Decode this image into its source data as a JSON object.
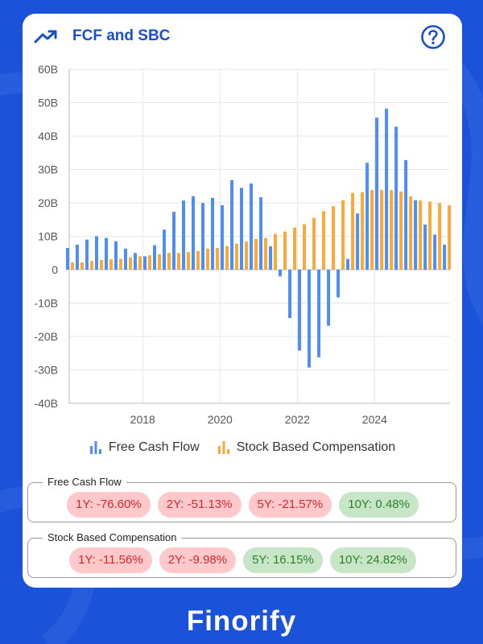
{
  "header": {
    "title": "FCF and SBC",
    "trend_icon": "trending-up-icon",
    "help_icon": "help-circle-icon"
  },
  "colors": {
    "background": "#1a53d9",
    "fcf": "#4f8df0",
    "sbc": "#f9a93b",
    "title": "#1a4fc8",
    "negative_bg": "#ffc9cc",
    "negative_text": "#d5262f",
    "positive_bg": "#c6e6c6",
    "positive_text": "#2e7d32"
  },
  "chart_data": {
    "type": "bar",
    "y_ticks": [
      "60B",
      "50B",
      "40B",
      "30B",
      "20B",
      "10B",
      "0",
      "-10B",
      "-20B",
      "-30B",
      "-40B"
    ],
    "ylim": [
      -40,
      60
    ],
    "y_unit": "B",
    "x_ticks": [
      {
        "label": "2018",
        "value": 2018
      },
      {
        "label": "2020",
        "value": 2020
      },
      {
        "label": "2022",
        "value": 2022
      },
      {
        "label": "2024",
        "value": 2024
      }
    ],
    "xlim": [
      2016.1,
      2025.95
    ],
    "series": [
      {
        "name": "Free Cash Flow",
        "x": [
          2016.13,
          2016.38,
          2016.63,
          2016.88,
          2017.13,
          2017.38,
          2017.63,
          2017.88,
          2018.13,
          2018.38,
          2018.63,
          2018.88,
          2019.13,
          2019.38,
          2019.63,
          2019.88,
          2020.13,
          2020.38,
          2020.63,
          2020.88,
          2021.13,
          2021.38,
          2021.63,
          2021.88,
          2022.13,
          2022.38,
          2022.63,
          2022.88,
          2023.13,
          2023.38,
          2023.63,
          2023.88,
          2024.13,
          2024.38,
          2024.63,
          2024.88,
          2025.13,
          2025.38,
          2025.63,
          2025.88
        ],
        "values": [
          6.5,
          7.5,
          9,
          10,
          9.5,
          8.5,
          6.3,
          5,
          4,
          7.3,
          12,
          17.3,
          20.7,
          22,
          20,
          21.5,
          19.3,
          26.8,
          24.5,
          25.8,
          21.7,
          7,
          -2,
          -14.5,
          -24.2,
          -29.3,
          -26.2,
          -16.8,
          -8.3,
          3.2,
          16.8,
          32,
          45.5,
          48.2,
          42.8,
          32.8,
          20.8,
          13.5,
          10.5,
          7.5
        ]
      },
      {
        "name": "Stock Based Compensation",
        "x": [
          2016.13,
          2016.38,
          2016.63,
          2016.88,
          2017.13,
          2017.38,
          2017.63,
          2017.88,
          2018.13,
          2018.38,
          2018.63,
          2018.88,
          2019.13,
          2019.38,
          2019.63,
          2019.88,
          2020.13,
          2020.38,
          2020.63,
          2020.88,
          2021.13,
          2021.38,
          2021.63,
          2021.88,
          2022.13,
          2022.38,
          2022.63,
          2022.88,
          2023.13,
          2023.38,
          2023.63,
          2023.88,
          2024.13,
          2024.38,
          2024.63,
          2024.88,
          2025.13,
          2025.38,
          2025.63,
          2025.88
        ],
        "values": [
          2.2,
          2.2,
          2.6,
          2.9,
          3.1,
          3.3,
          3.7,
          4,
          4.3,
          4.6,
          5,
          5,
          5.3,
          5.6,
          6.3,
          6.5,
          7.1,
          7.8,
          8.4,
          9.2,
          9.5,
          10.7,
          11.4,
          12.6,
          13.6,
          15.5,
          17.5,
          19,
          20.8,
          23,
          23.2,
          23.8,
          23.9,
          23.8,
          23.4,
          21.9,
          20.7,
          20.4,
          19.9,
          19.3
        ]
      }
    ],
    "legend": [
      "Free Cash Flow",
      "Stock Based Compensation"
    ]
  },
  "legend": {
    "fcf_label": "Free Cash Flow",
    "sbc_label": "Stock Based Compensation"
  },
  "metrics": {
    "fcf": {
      "title": "Free Cash Flow",
      "pills": [
        {
          "label": "1Y: -76.60%",
          "sign": "neg"
        },
        {
          "label": "2Y: -51.13%",
          "sign": "neg"
        },
        {
          "label": "5Y: -21.57%",
          "sign": "neg"
        },
        {
          "label": "10Y: 0.48%",
          "sign": "pos"
        }
      ]
    },
    "sbc": {
      "title": "Stock Based Compensation",
      "pills": [
        {
          "label": "1Y: -11.56%",
          "sign": "neg"
        },
        {
          "label": "2Y: -9.98%",
          "sign": "neg"
        },
        {
          "label": "5Y: 16.15%",
          "sign": "pos"
        },
        {
          "label": "10Y: 24.82%",
          "sign": "pos"
        }
      ]
    }
  },
  "brand": {
    "name": "Finorify"
  }
}
